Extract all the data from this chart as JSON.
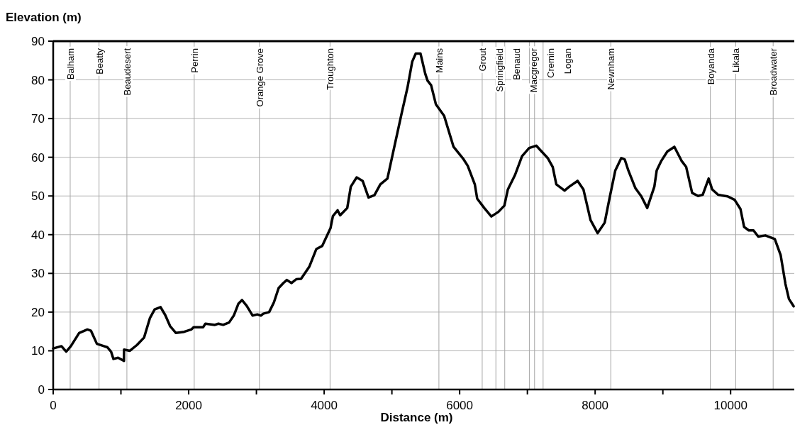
{
  "chart_data": {
    "type": "line",
    "xlabel": "Distance (m)",
    "ylabel": "Elevation (m)",
    "xlim": [
      0,
      10940
    ],
    "ylim": [
      0,
      90
    ],
    "xticks": [
      0,
      {
        "value": 1000,
        "label": null
      },
      2000,
      {
        "value": 3000,
        "label": null
      },
      4000,
      {
        "value": 5000,
        "label": null
      },
      6000,
      {
        "value": 7000,
        "label": null
      },
      8000,
      {
        "value": 9000,
        "label": null
      },
      10000
    ],
    "yticks": [
      0,
      10,
      20,
      30,
      40,
      50,
      60,
      70,
      80,
      90
    ],
    "grid": "y",
    "marker": "none",
    "line_style": "solid",
    "series": [
      {
        "color": "#000000",
        "x": [
          0,
          122,
          192,
          261,
          383,
          505,
          557,
          645,
          749,
          801,
          854,
          889,
          958,
          1045,
          1046,
          1132,
          1237,
          1341,
          1429,
          1498,
          1585,
          1655,
          1725,
          1812,
          1934,
          2038,
          2073,
          2213,
          2247,
          2387,
          2439,
          2509,
          2596,
          2666,
          2735,
          2787,
          2857,
          2944,
          3014,
          3066,
          3101,
          3188,
          3258,
          3328,
          3397,
          3449,
          3519,
          3589,
          3659,
          3780,
          3885,
          3972,
          4094,
          4129,
          4199,
          4236,
          4341,
          4393,
          4480,
          4568,
          4655,
          4742,
          4829,
          4934,
          5021,
          5143,
          5230,
          5300,
          5352,
          5422,
          5492,
          5526,
          5579,
          5649,
          5771,
          5910,
          6049,
          6119,
          6224,
          6259,
          6363,
          6468,
          6572,
          6660,
          6712,
          6817,
          6921,
          7026,
          7131,
          7304,
          7374,
          7427,
          7549,
          7618,
          7741,
          7827,
          7932,
          8037,
          8141,
          8211,
          8298,
          8386,
          8438,
          8490,
          8595,
          8682,
          8769,
          8874,
          8909,
          8978,
          9066,
          9170,
          9275,
          9344,
          9432,
          9519,
          9588,
          9676,
          9728,
          9815,
          9955,
          10059,
          10146,
          10199,
          10269,
          10338,
          10408,
          10513,
          10652,
          10739,
          10809,
          10861,
          10931
        ],
        "values": [
          10.6,
          11.2,
          9.8,
          11.2,
          14.6,
          15.5,
          15.2,
          11.8,
          11.2,
          10.9,
          9.8,
          7.9,
          8.2,
          7.4,
          10.3,
          10,
          11.5,
          13.4,
          18.5,
          20.7,
          21.3,
          19.2,
          16.4,
          14.6,
          14.9,
          15.5,
          16.1,
          16.1,
          17,
          16.7,
          17,
          16.7,
          17.3,
          19.1,
          22.2,
          23.1,
          21.6,
          19.1,
          19.4,
          19.1,
          19.6,
          20,
          22.5,
          26.2,
          27.5,
          28.3,
          27.5,
          28.5,
          28.6,
          31.7,
          36.3,
          37.1,
          41.7,
          44.8,
          46.3,
          45,
          46.9,
          52.4,
          54.8,
          53.9,
          49.6,
          50.2,
          53,
          54.5,
          61.5,
          71.3,
          78,
          84.7,
          86.8,
          86.8,
          81.6,
          79.8,
          78.6,
          73.7,
          70.7,
          62.7,
          59.7,
          57.8,
          53,
          49.3,
          46.9,
          44.7,
          45.9,
          47.5,
          51.7,
          55.4,
          60.3,
          62.4,
          63,
          59.7,
          57.5,
          53,
          51.4,
          52.4,
          53.9,
          51.7,
          43.8,
          40.4,
          43.1,
          49.3,
          56.6,
          59.8,
          59.4,
          56.6,
          52,
          49.9,
          46.9,
          52.4,
          56.6,
          59.1,
          61.5,
          62.7,
          59.1,
          57.5,
          50.8,
          50,
          50.3,
          54.5,
          51.7,
          50.3,
          49.9,
          49,
          46.6,
          42,
          41.1,
          41.1,
          39.5,
          39.8,
          38.9,
          34.7,
          27.3,
          23.4,
          21.5
        ]
      }
    ],
    "ref_lines": [
      {
        "axis": "x",
        "value": 251,
        "label": "Balham",
        "color": "#a6a6a6"
      },
      {
        "axis": "x",
        "value": 677,
        "label": "Beatty",
        "color": "#a6a6a6"
      },
      {
        "axis": "x",
        "value": 1088,
        "label": "Beaudesert",
        "color": "#a6a6a6"
      },
      {
        "axis": "x",
        "value": 2082,
        "label": "Perrin",
        "color": "#a6a6a6"
      },
      {
        "axis": "x",
        "value": 3044,
        "label": "Orange Grove",
        "color": "#a6a6a6"
      },
      {
        "axis": "x",
        "value": 4087,
        "label": "Troughton",
        "color": "#a6a6a6"
      },
      {
        "axis": "x",
        "value": 5694,
        "label": "Mains",
        "color": "#a6a6a6"
      },
      {
        "axis": "x",
        "value": 6333,
        "label": "Grout",
        "color": "#a6a6a6"
      },
      {
        "axis": "x",
        "value": 6535,
        "label": "Springfield",
        "color": "#a6a6a6"
      },
      {
        "axis": "x",
        "value": 6666,
        "label": "Benaud",
        "color": "#a6a6a6"
      },
      {
        "axis": "x",
        "value": 7029,
        "label": "Macgregor",
        "color": "#a6a6a6"
      },
      {
        "axis": "x",
        "value": 7106,
        "label": "Cremin",
        "color": "#a6a6a6"
      },
      {
        "axis": "x",
        "value": 7232,
        "label": "Logan",
        "color": "#a6a6a6"
      },
      {
        "axis": "x",
        "value": 8231,
        "label": "Newnham",
        "color": "#a6a6a6"
      },
      {
        "axis": "x",
        "value": 9701,
        "label": "Boyanda",
        "color": "#a6a6a6"
      },
      {
        "axis": "x",
        "value": 10076,
        "label": "Likala",
        "color": "#a6a6a6"
      },
      {
        "axis": "x",
        "value": 10628,
        "label": "Broadwater",
        "color": "#a6a6a6"
      }
    ]
  }
}
